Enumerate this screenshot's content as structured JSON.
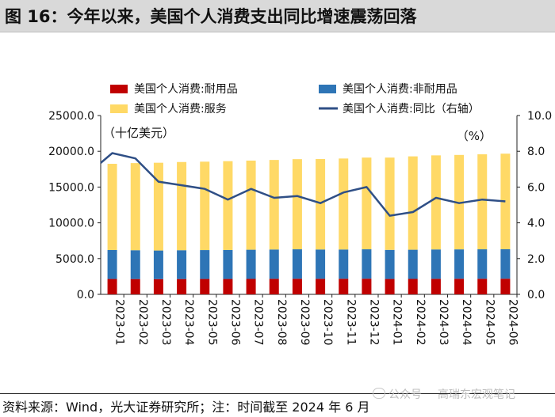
{
  "title": "图 16：今年以来，美国个人消费支出同比增速震荡回落",
  "chart_data": {
    "type": "bar",
    "stacked": true,
    "categories": [
      "2023-01",
      "2023-02",
      "2023-03",
      "2023-04",
      "2023-05",
      "2023-06",
      "2023-07",
      "2023-08",
      "2023-09",
      "2023-10",
      "2023-11",
      "2023-12",
      "2024-01",
      "2024-02",
      "2024-03",
      "2024-04",
      "2024-05",
      "2024-06"
    ],
    "series": [
      {
        "name": "美国个人消费:耐用品",
        "color": "#c00000",
        "axis": "left",
        "values": [
          2150,
          2140,
          2130,
          2140,
          2150,
          2150,
          2160,
          2170,
          2180,
          2170,
          2180,
          2190,
          2150,
          2160,
          2170,
          2180,
          2180,
          2190
        ]
      },
      {
        "name": "美国个人消费:非耐用品",
        "color": "#2e75b6",
        "axis": "left",
        "values": [
          4050,
          4030,
          4000,
          4030,
          4040,
          4050,
          4080,
          4100,
          4120,
          4100,
          4090,
          4110,
          4070,
          4080,
          4110,
          4110,
          4120,
          4120
        ]
      },
      {
        "name": "美国个人消费:服务",
        "color": "#ffd966",
        "axis": "left",
        "values": [
          12050,
          12180,
          12270,
          12330,
          12360,
          12420,
          12460,
          12520,
          12600,
          12650,
          12720,
          12820,
          12900,
          13050,
          13150,
          13200,
          13280,
          13360
        ]
      },
      {
        "name": "美国个人消费:同比（右轴）",
        "color": "#2f4f86",
        "axis": "right",
        "type": "line",
        "values": [
          7.9,
          7.6,
          6.3,
          6.1,
          5.9,
          5.3,
          5.9,
          5.4,
          5.5,
          5.1,
          5.7,
          6.0,
          4.4,
          4.6,
          5.4,
          5.1,
          5.3,
          5.2
        ]
      }
    ],
    "y_left": {
      "label": "（十亿美元）",
      "min": 0,
      "max": 25000,
      "ticks": [
        "0.0",
        "5000.0",
        "10000.0",
        "15000.0",
        "20000.0",
        "25000.0"
      ]
    },
    "y_right": {
      "label": "（%）",
      "min": 0,
      "max": 10,
      "ticks": [
        "0.0",
        "2.0",
        "4.0",
        "6.0",
        "8.0",
        "10.0"
      ]
    },
    "legend": "top, two columns"
  },
  "footer": {
    "source": "资料来源：Wind，光大证券研究所；注：时间截至 2024 年 6 月",
    "watermark_account": "公众号",
    "watermark_name": "高瑞东宏观笔记"
  }
}
